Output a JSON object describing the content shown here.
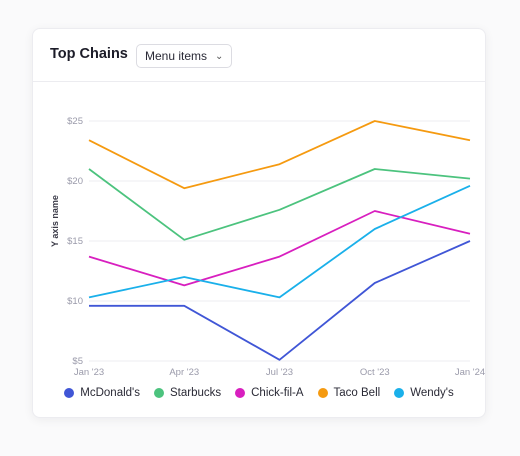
{
  "header": {
    "title": "Top Chains",
    "dropdown_value": "Menu items"
  },
  "chart_data": {
    "type": "line",
    "x": [
      "Jan '23",
      "Apr '23",
      "Jul '23",
      "Oct '23",
      "Jan '24"
    ],
    "ylabel": "Y axis name",
    "yticks": [
      5,
      10,
      15,
      20,
      25
    ],
    "ytick_labels": [
      "$5",
      "$10",
      "$15",
      "$20",
      "$25"
    ],
    "ylim": [
      5,
      25
    ],
    "grid": true,
    "legend_position": "bottom",
    "series": [
      {
        "name": "McDonald's",
        "color": "#4056d6",
        "values": [
          9.6,
          9.6,
          5.1,
          11.5,
          15.0
        ]
      },
      {
        "name": "Starbucks",
        "color": "#4cc37e",
        "values": [
          21.0,
          15.1,
          17.6,
          21.0,
          20.2
        ]
      },
      {
        "name": "Chick-fil-A",
        "color": "#d81fbf",
        "values": [
          13.7,
          11.3,
          13.7,
          17.5,
          15.6
        ]
      },
      {
        "name": "Taco Bell",
        "color": "#f59a10",
        "values": [
          23.4,
          19.4,
          21.4,
          25.0,
          23.4
        ]
      },
      {
        "name": "Wendy's",
        "color": "#1ab0ea",
        "values": [
          10.3,
          12.0,
          10.3,
          16.0,
          19.6
        ]
      }
    ]
  }
}
